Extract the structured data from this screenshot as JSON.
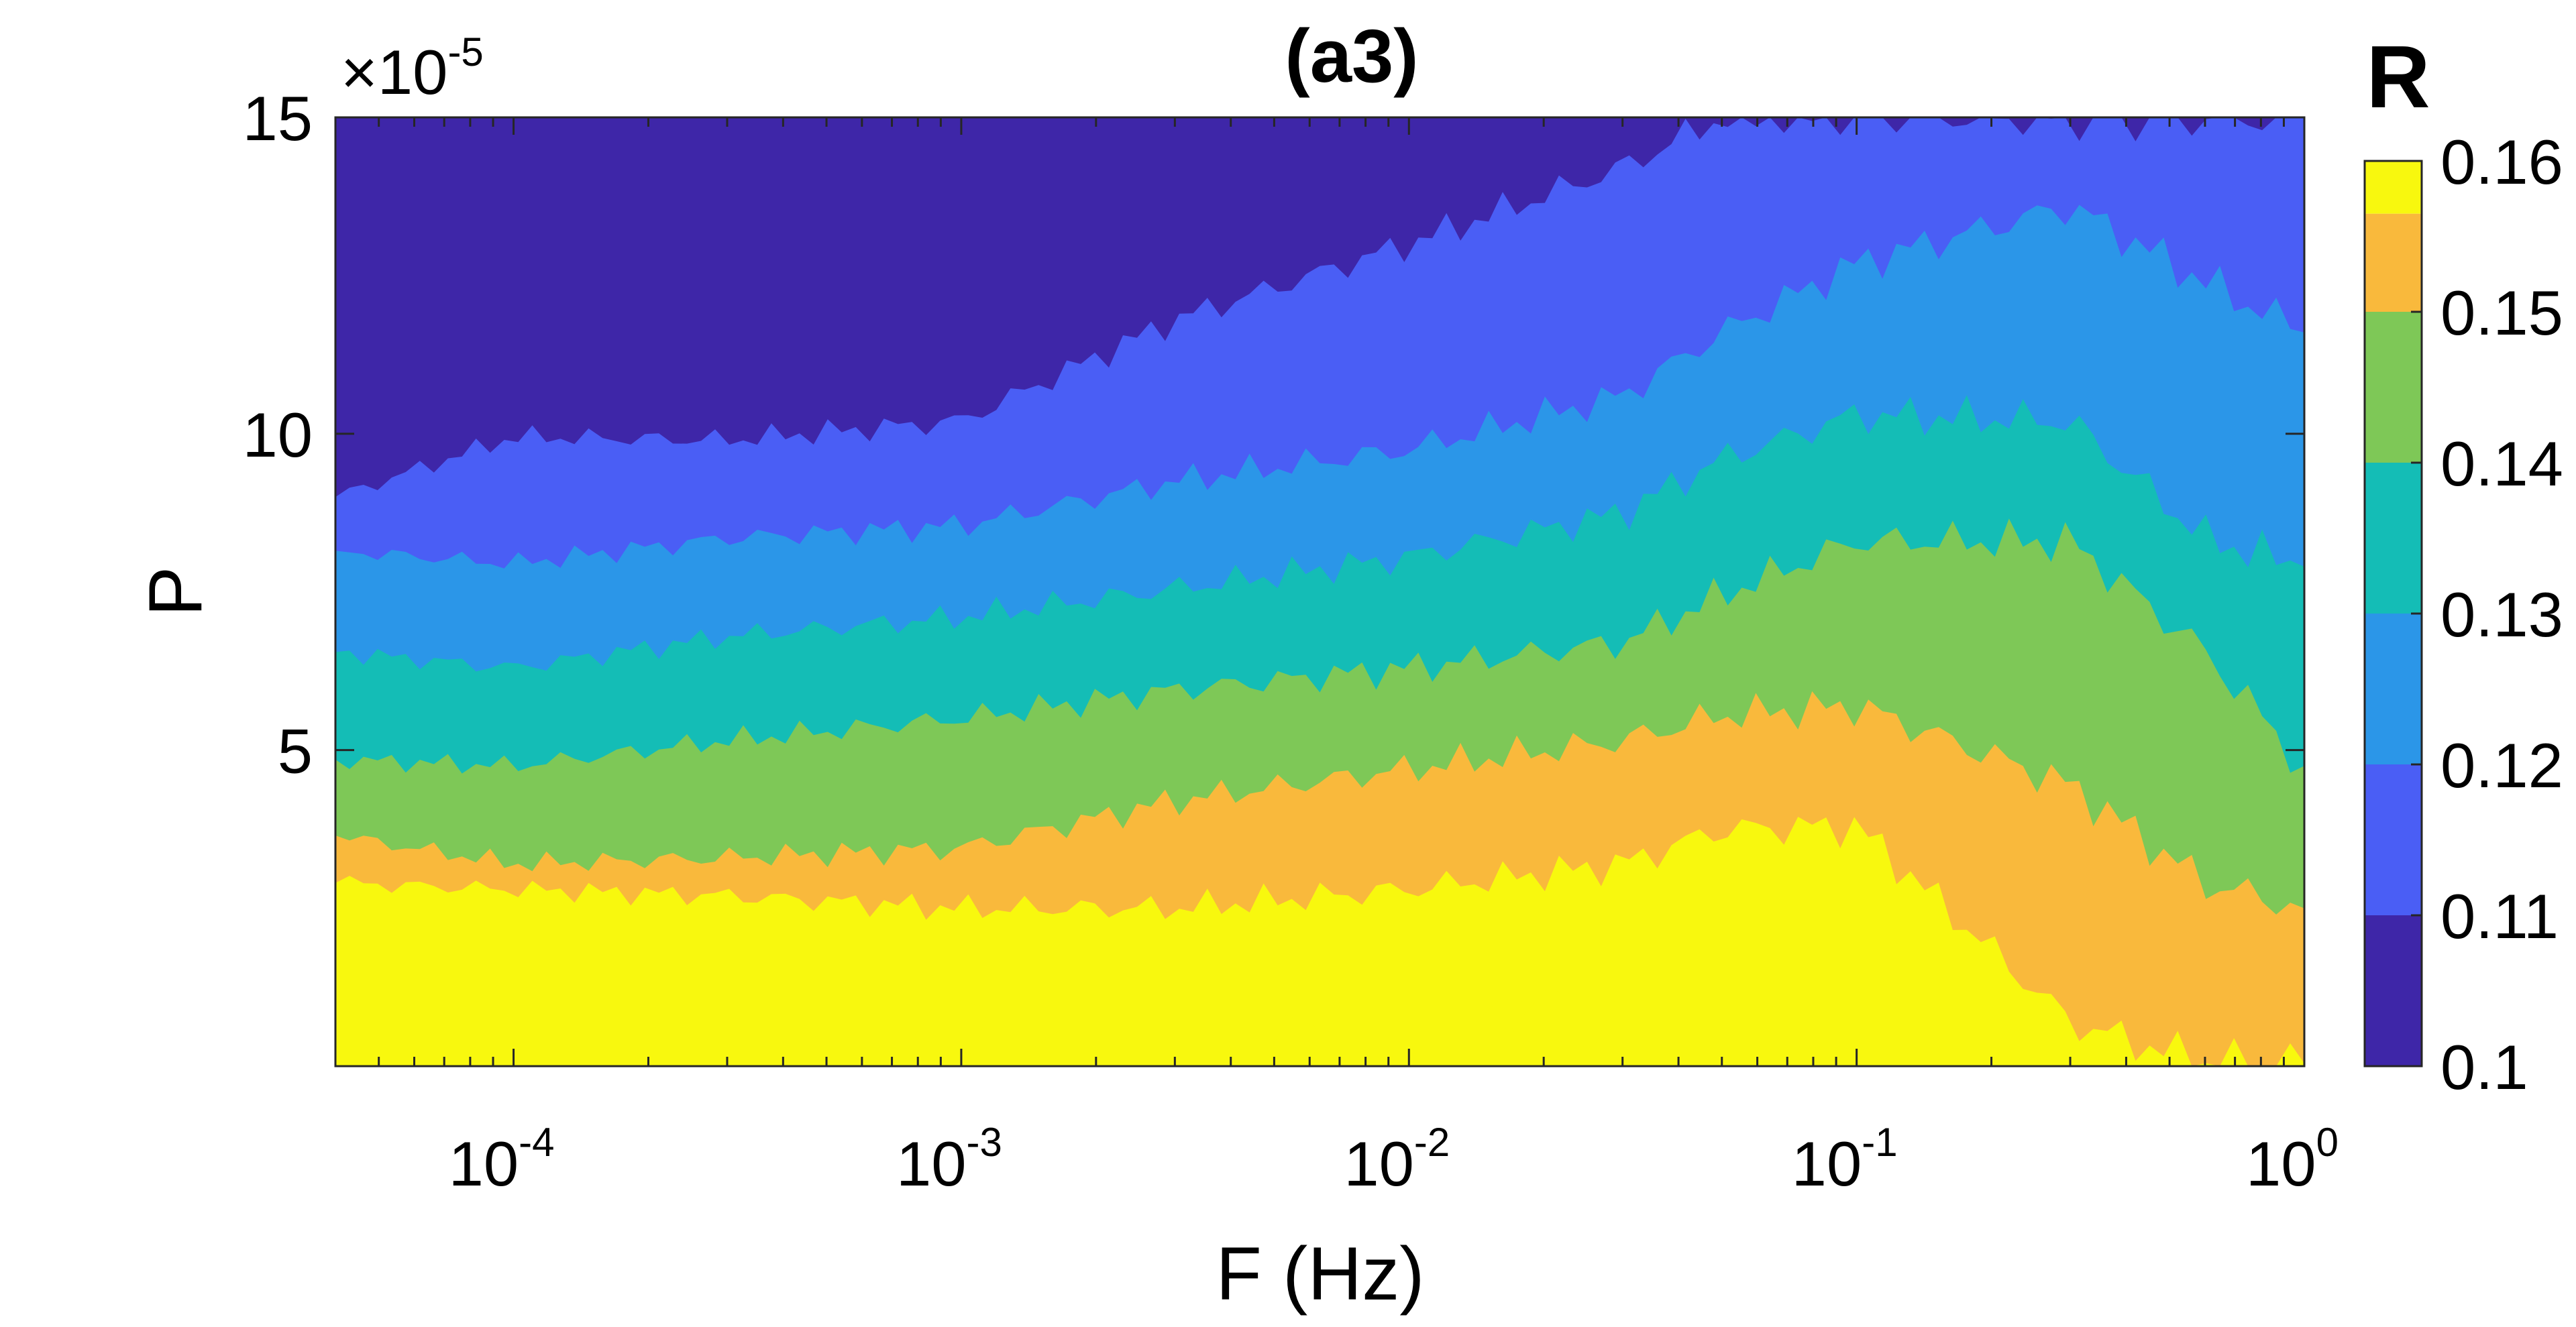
{
  "chart_data": {
    "type": "contour",
    "title": "(a3)",
    "xlabel": "F (Hz)",
    "ylabel": "P",
    "x_scale": "log",
    "xlim": [
      4e-05,
      1
    ],
    "ylim": [
      5e-08,
      0.00015
    ],
    "y_multiplier_label": "×10",
    "y_multiplier_exponent": "-5",
    "x_ticks": [
      {
        "value": 0.0001,
        "base": "10",
        "exp": "-4"
      },
      {
        "value": 0.001,
        "base": "10",
        "exp": "-3"
      },
      {
        "value": 0.01,
        "base": "10",
        "exp": "-2"
      },
      {
        "value": 0.1,
        "base": "10",
        "exp": "-1"
      },
      {
        "value": 1,
        "base": "10",
        "exp": "0"
      }
    ],
    "y_ticks": [
      {
        "value": 5e-05,
        "label": "5"
      },
      {
        "value": 0.0001,
        "label": "10"
      },
      {
        "value": 0.00015,
        "label": "15"
      }
    ],
    "colorbar": {
      "label": "R",
      "levels": [
        0.1,
        0.11,
        0.12,
        0.13,
        0.14,
        0.15,
        0.16
      ],
      "tick_labels": [
        "0.1",
        "0.11",
        "0.12",
        "0.13",
        "0.14",
        "0.15",
        "0.16"
      ],
      "colors": [
        "#3e26a8",
        "#4a5ef5",
        "#2b96e8",
        "#14bdb6",
        "#7ec857",
        "#f9b93c",
        "#f8f80e"
      ]
    },
    "boundaries": [
      {
        "level": 0.11,
        "x": [
          4e-05,
          0.0001,
          0.0003,
          0.001,
          0.003,
          0.01,
          0.03,
          0.05,
          0.1,
          0.3,
          0.6,
          1
        ],
        "y": [
          9e-05,
          9.95e-05,
          9.9e-05,
          0.000102,
          0.000118,
          0.00013,
          0.000142,
          0.00015,
          0.00015,
          0.00015,
          0.00015,
          0.00015
        ]
      },
      {
        "level": 0.12,
        "x": [
          4e-05,
          0.0001,
          0.0003,
          0.001,
          0.003,
          0.01,
          0.03,
          0.05,
          0.1,
          0.3,
          0.6,
          1
        ],
        "y": [
          8.15e-05,
          7.95e-05,
          8.35e-05,
          8.55e-05,
          9.25e-05,
          9.75e-05,
          0.000106,
          0.000116,
          0.000127,
          0.000136,
          0.000124,
          0.000116
        ]
      },
      {
        "level": 0.13,
        "x": [
          4e-05,
          0.0001,
          0.0003,
          0.001,
          0.003,
          0.01,
          0.03,
          0.05,
          0.1,
          0.3,
          0.6,
          1
        ],
        "y": [
          6.55e-05,
          6.3e-05,
          6.8e-05,
          7.1e-05,
          7.55e-05,
          8.05e-05,
          8.75e-05,
          9.6e-05,
          0.000103,
          0.000102,
          8.35e-05,
          7.9e-05
        ]
      },
      {
        "level": 0.14,
        "x": [
          4e-05,
          0.0001,
          0.0003,
          0.001,
          0.003,
          0.01,
          0.03,
          0.05,
          0.1,
          0.3,
          0.6,
          1
        ],
        "y": [
          4.85e-05,
          4.75e-05,
          5.15e-05,
          5.5e-05,
          5.95e-05,
          6.3e-05,
          6.7e-05,
          7.45e-05,
          8.3e-05,
          8.3e-05,
          6.55e-05,
          4.75e-05
        ]
      },
      {
        "level": 0.15,
        "x": [
          4e-05,
          0.0001,
          0.0003,
          0.001,
          0.003,
          0.01,
          0.03,
          0.05,
          0.1,
          0.3,
          0.6,
          1
        ],
        "y": [
          3.65e-05,
          3.2e-05,
          3.3e-05,
          3.45e-05,
          4.2e-05,
          4.7e-05,
          5.15e-05,
          5.55e-05,
          5.7e-05,
          4.45e-05,
          2.9e-05,
          2.5e-05
        ]
      },
      {
        "level": 0.16,
        "x": [
          4e-05,
          0.0001,
          0.0003,
          0.001,
          0.003,
          0.01,
          0.03,
          0.05,
          0.1,
          0.3,
          0.6,
          1
        ],
        "y": [
          2.9e-05,
          2.8e-05,
          2.7e-05,
          2.5e-05,
          2.5e-05,
          2.8e-05,
          3.2e-05,
          3.75e-05,
          3.8e-05,
          7e-06,
          5e-07,
          5e-07
        ]
      }
    ],
    "hotspots_above_0_15": [
      {
        "x": 0.00028,
        "y": 1.5e-06
      },
      {
        "x": 0.00095,
        "y": 6.5e-06
      },
      {
        "x": 0.0018,
        "y": 3e-06
      },
      {
        "x": 0.0055,
        "y": 3.5e-06
      },
      {
        "x": 0.017,
        "y": 8e-06
      },
      {
        "x": 0.022,
        "y": 7.5e-06
      },
      {
        "x": 0.04,
        "y": 4.5e-06
      }
    ]
  }
}
